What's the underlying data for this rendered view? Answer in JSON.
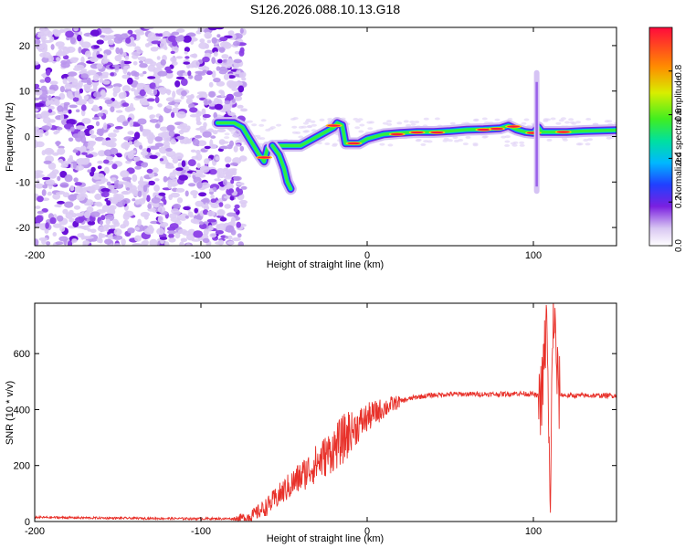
{
  "title": "S126.2026.088.10.13.G18",
  "chart_data": [
    {
      "type": "heatmap",
      "name": "spectrogram",
      "xlabel": "Height of straight line (km)",
      "ylabel": "Frequency (Hz)",
      "xlim": [
        -200,
        150
      ],
      "ylim": [
        -24,
        24
      ],
      "xticks": [
        -200,
        -100,
        0,
        100
      ],
      "yticks": [
        -20,
        -10,
        0,
        10,
        20
      ],
      "colorbar": {
        "label": "Normalized spectral amplitude",
        "range": [
          0,
          1
        ],
        "ticks": [
          0.0,
          0.2,
          0.4,
          0.6,
          0.8
        ]
      },
      "main_ridge": [
        {
          "x": -90,
          "y": 3
        },
        {
          "x": -80,
          "y": 3
        },
        {
          "x": -75,
          "y": 2
        },
        {
          "x": -70,
          "y": -1
        },
        {
          "x": -65,
          "y": -4
        },
        {
          "x": -62,
          "y": -5.5
        },
        {
          "x": -60,
          "y": -2.5
        },
        {
          "x": -55,
          "y": -2
        },
        {
          "x": -50,
          "y": -2
        },
        {
          "x": -45,
          "y": -2
        },
        {
          "x": -40,
          "y": -2
        },
        {
          "x": -35,
          "y": -1
        },
        {
          "x": -30,
          "y": 0
        },
        {
          "x": -25,
          "y": 1
        },
        {
          "x": -20,
          "y": 2
        },
        {
          "x": -18,
          "y": 3
        },
        {
          "x": -15,
          "y": 2.5
        },
        {
          "x": -13,
          "y": -1.5
        },
        {
          "x": -5,
          "y": -1.5
        },
        {
          "x": 0,
          "y": -0.5
        },
        {
          "x": 5,
          "y": 0
        },
        {
          "x": 10,
          "y": 0.5
        },
        {
          "x": 20,
          "y": 0.8
        },
        {
          "x": 30,
          "y": 1
        },
        {
          "x": 40,
          "y": 1
        },
        {
          "x": 50,
          "y": 1.2
        },
        {
          "x": 60,
          "y": 1.5
        },
        {
          "x": 70,
          "y": 1.6
        },
        {
          "x": 80,
          "y": 1.8
        },
        {
          "x": 85,
          "y": 2.4
        },
        {
          "x": 90,
          "y": 1.5
        },
        {
          "x": 95,
          "y": 1
        },
        {
          "x": 100,
          "y": 0.8
        },
        {
          "x": 103,
          "y": 2
        },
        {
          "x": 105,
          "y": 1
        },
        {
          "x": 110,
          "y": 1
        },
        {
          "x": 120,
          "y": 1
        },
        {
          "x": 130,
          "y": 1.2
        },
        {
          "x": 140,
          "y": 1.3
        },
        {
          "x": 150,
          "y": 1.4
        }
      ],
      "branch": [
        {
          "x": -57,
          "y": -2
        },
        {
          "x": -53,
          "y": -4
        },
        {
          "x": -50,
          "y": -7
        },
        {
          "x": -48,
          "y": -10
        },
        {
          "x": -46,
          "y": -11.5
        }
      ],
      "spike": {
        "x": 102,
        "y_range": [
          -12,
          14
        ]
      },
      "noise_region_x": [
        -200,
        -80
      ]
    },
    {
      "type": "line",
      "name": "snr",
      "xlabel": "Height of straight line (km)",
      "ylabel": "SNR (10 * v/v)",
      "xlim": [
        -200,
        150
      ],
      "ylim": [
        0,
        780
      ],
      "xticks": [
        -200,
        -100,
        0,
        100
      ],
      "yticks": [
        0,
        200,
        400,
        600
      ],
      "color": "#e8312a",
      "series": [
        {
          "name": "SNR",
          "x": [
            -200,
            -150,
            -100,
            -80,
            -70,
            -60,
            -50,
            -40,
            -30,
            -20,
            -10,
            0,
            10,
            20,
            30,
            40,
            50,
            60,
            70,
            80,
            90,
            100,
            105,
            108,
            110,
            112,
            115,
            120,
            130,
            140,
            150
          ],
          "values": [
            15,
            12,
            10,
            10,
            18,
            55,
            110,
            160,
            210,
            260,
            320,
            370,
            405,
            430,
            445,
            452,
            455,
            455,
            455,
            455,
            458,
            455,
            440,
            720,
            40,
            770,
            455,
            450,
            450,
            450,
            450
          ]
        }
      ]
    }
  ]
}
